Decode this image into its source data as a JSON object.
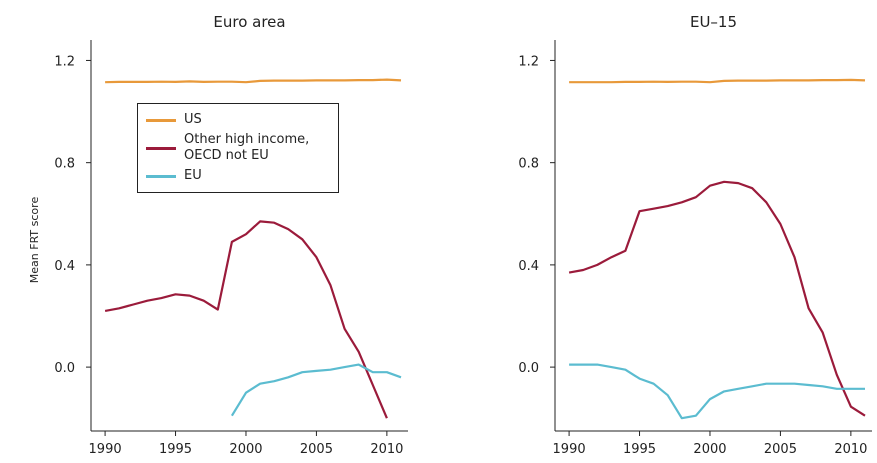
{
  "chart_data": [
    {
      "type": "line",
      "title": "Euro area",
      "ylabel": "Mean FRT score",
      "x": [
        1990,
        1991,
        1992,
        1993,
        1994,
        1995,
        1996,
        1997,
        1998,
        1999,
        2000,
        2001,
        2002,
        2003,
        2004,
        2005,
        2006,
        2007,
        2008,
        2009,
        2010,
        2011
      ],
      "xlim": [
        1989,
        2011.5
      ],
      "xticks": [
        1990,
        1995,
        2000,
        2005,
        2010
      ],
      "ylim": [
        -0.25,
        1.28
      ],
      "yticks": [
        {
          "value": 0,
          "label": "0.0"
        },
        0.4,
        0.8,
        1.2
      ],
      "legend": "upper left",
      "series": [
        {
          "name": "US",
          "color": "#e8993a",
          "values": [
            1.115,
            1.116,
            1.116,
            1.116,
            1.117,
            1.116,
            1.118,
            1.116,
            1.117,
            1.117,
            1.115,
            1.12,
            1.121,
            1.121,
            1.121,
            1.122,
            1.122,
            1.122,
            1.123,
            1.123,
            1.125,
            1.122
          ]
        },
        {
          "name": "Other high income, OECD not EU",
          "color": "#9b1b3b",
          "values": [
            0.22,
            0.23,
            0.245,
            0.26,
            0.27,
            0.285,
            0.28,
            0.26,
            0.225,
            0.49,
            0.52,
            0.57,
            0.565,
            0.54,
            0.5,
            0.43,
            0.32,
            0.15,
            0.06,
            -0.07,
            -0.2,
            null
          ]
        },
        {
          "name": "EU",
          "color": "#5bbcd0",
          "values": [
            null,
            null,
            null,
            null,
            null,
            null,
            null,
            null,
            null,
            -0.19,
            -0.1,
            -0.065,
            -0.055,
            -0.04,
            -0.02,
            -0.015,
            -0.01,
            0.0,
            0.01,
            -0.02,
            -0.02,
            -0.04
          ]
        }
      ]
    },
    {
      "type": "line",
      "title": "EU–15",
      "x": [
        1990,
        1991,
        1992,
        1993,
        1994,
        1995,
        1996,
        1997,
        1998,
        1999,
        2000,
        2001,
        2002,
        2003,
        2004,
        2005,
        2006,
        2007,
        2008,
        2009,
        2010,
        2011
      ],
      "xlim": [
        1989,
        2011.5
      ],
      "xticks": [
        1990,
        1995,
        2000,
        2005,
        2010
      ],
      "ylim": [
        -0.25,
        1.28
      ],
      "yticks": [
        {
          "value": 0,
          "label": "0.0"
        },
        0.4,
        0.8,
        1.2
      ],
      "series": [
        {
          "color": "#e8993a",
          "values": [
            1.115,
            1.115,
            1.115,
            1.115,
            1.116,
            1.116,
            1.117,
            1.116,
            1.117,
            1.117,
            1.115,
            1.12,
            1.121,
            1.121,
            1.121,
            1.122,
            1.122,
            1.122,
            1.123,
            1.123,
            1.124,
            1.122
          ]
        },
        {
          "color": "#9b1b3b",
          "values": [
            0.37,
            0.38,
            0.4,
            0.43,
            0.455,
            0.61,
            0.62,
            0.63,
            0.645,
            0.665,
            0.71,
            0.725,
            0.72,
            0.7,
            0.645,
            0.56,
            0.43,
            0.23,
            0.135,
            -0.03,
            -0.155,
            -0.19
          ]
        },
        {
          "color": "#5bbcd0",
          "values": [
            0.01,
            0.01,
            0.01,
            0.0,
            -0.01,
            -0.045,
            -0.065,
            -0.11,
            -0.2,
            -0.19,
            -0.125,
            -0.095,
            -0.085,
            -0.075,
            -0.065,
            -0.065,
            -0.065,
            -0.07,
            -0.075,
            -0.085,
            -0.085,
            -0.085
          ]
        }
      ]
    }
  ]
}
